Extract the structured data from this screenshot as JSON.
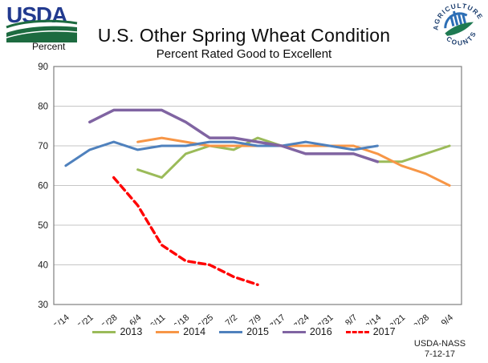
{
  "header": {
    "usda_logo_text": "USDA",
    "percent_label": "Percent",
    "title": "U.S. Other Spring Wheat Condition",
    "subtitle": "Percent Rated Good to Excellent",
    "badge_top_text": "AGRICULTURE",
    "badge_bottom_text": "COUNTS"
  },
  "footer": {
    "source": "USDA-NASS",
    "date": "7-12-17"
  },
  "chart_data": {
    "type": "line",
    "title": "U.S. Other Spring Wheat Condition",
    "subtitle": "Percent Rated Good to Excellent",
    "xlabel": "",
    "ylabel": "Percent",
    "ylim": [
      30,
      90
    ],
    "yticks": [
      90,
      80,
      70,
      60,
      50,
      40,
      30
    ],
    "grid": "horizontal",
    "legend_position": "bottom",
    "axis_color": "#7f7f7f",
    "gridline_color": "#c6c6c6",
    "categories": [
      "5/14",
      "5/21",
      "5/28",
      "6/4",
      "6/11",
      "6/18",
      "6/25",
      "7/2",
      "7/9",
      "7/17",
      "7/24",
      "7/31",
      "8/7",
      "8/14",
      "8/21",
      "8/28",
      "9/4"
    ],
    "series": [
      {
        "name": "2013",
        "color": "#9BBB59",
        "style": "solid",
        "width": 3,
        "values": [
          null,
          null,
          null,
          64,
          62,
          68,
          70,
          69,
          72,
          70,
          68,
          68,
          68,
          66,
          66,
          68,
          70
        ]
      },
      {
        "name": "2014",
        "color": "#F79646",
        "style": "solid",
        "width": 3,
        "values": [
          null,
          null,
          null,
          71,
          72,
          71,
          70,
          70,
          70,
          70,
          70,
          70,
          70,
          68,
          65,
          63,
          60
        ]
      },
      {
        "name": "2015",
        "color": "#4F81BD",
        "style": "solid",
        "width": 3,
        "values": [
          65,
          69,
          71,
          69,
          70,
          70,
          71,
          71,
          70,
          70,
          71,
          70,
          69,
          70,
          null,
          null,
          null
        ]
      },
      {
        "name": "2016",
        "color": "#8064A2",
        "style": "solid",
        "width": 3.5,
        "values": [
          null,
          76,
          79,
          79,
          79,
          76,
          72,
          72,
          71,
          70,
          68,
          68,
          68,
          66,
          null,
          null,
          null
        ]
      },
      {
        "name": "2017",
        "color": "#FF0000",
        "style": "dashed",
        "width": 3.4,
        "values": [
          null,
          null,
          62,
          55,
          45,
          41,
          40,
          37,
          35,
          null,
          null,
          null,
          null,
          null,
          null,
          null,
          null
        ]
      }
    ]
  }
}
